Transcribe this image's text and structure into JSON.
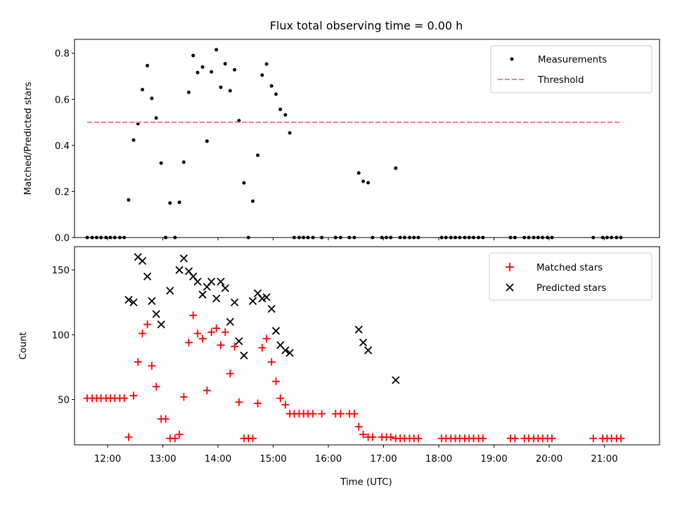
{
  "figure": {
    "title": "Flux total observing time = 0.00 h",
    "xlabel": "Time (UTC)",
    "xticks": [
      {
        "t": 12,
        "label": "12:00"
      },
      {
        "t": 13,
        "label": "13:00"
      },
      {
        "t": 14,
        "label": "14:00"
      },
      {
        "t": 15,
        "label": "15:00"
      },
      {
        "t": 16,
        "label": "16:00"
      },
      {
        "t": 17,
        "label": "17:00"
      },
      {
        "t": 18,
        "label": "18:00"
      },
      {
        "t": 19,
        "label": "19:00"
      },
      {
        "t": 20,
        "label": "20:00"
      },
      {
        "t": 21,
        "label": "21:00"
      }
    ],
    "xlim": [
      11.4,
      22.0
    ]
  },
  "chart_data": [
    {
      "type": "scatter",
      "ylabel": "Matched/Predicted stars",
      "ylim": [
        0,
        0.86
      ],
      "yticks": [
        {
          "v": 0.0,
          "label": "0.0"
        },
        {
          "v": 0.2,
          "label": "0.2"
        },
        {
          "v": 0.4,
          "label": "0.4"
        },
        {
          "v": 0.6,
          "label": "0.6"
        },
        {
          "v": 0.8,
          "label": "0.8"
        }
      ],
      "legend": {
        "position": "upper right",
        "entries": [
          "Measurements",
          "Threshold"
        ]
      },
      "series": [
        {
          "name": "Measurements",
          "marker": "dot",
          "color": "#000000",
          "points": [
            [
              11.63,
              0
            ],
            [
              11.72,
              0
            ],
            [
              11.8,
              0
            ],
            [
              11.88,
              0
            ],
            [
              11.97,
              0
            ],
            [
              12.05,
              0
            ],
            [
              12.13,
              0
            ],
            [
              12.22,
              0
            ],
            [
              12.3,
              0
            ],
            [
              12.38,
              0.163
            ],
            [
              12.47,
              0.423
            ],
            [
              12.55,
              0.494
            ],
            [
              12.63,
              0.642
            ],
            [
              12.72,
              0.746
            ],
            [
              12.8,
              0.604
            ],
            [
              12.88,
              0.519
            ],
            [
              12.97,
              0.323
            ],
            [
              13.05,
              0
            ],
            [
              13.13,
              0.15
            ],
            [
              13.22,
              0
            ],
            [
              13.3,
              0.153
            ],
            [
              13.38,
              0.327
            ],
            [
              13.47,
              0.63
            ],
            [
              13.55,
              0.79
            ],
            [
              13.63,
              0.716
            ],
            [
              13.72,
              0.74
            ],
            [
              13.8,
              0.418
            ],
            [
              13.88,
              0.719
            ],
            [
              13.97,
              0.815
            ],
            [
              14.05,
              0.652
            ],
            [
              14.13,
              0.754
            ],
            [
              14.22,
              0.637
            ],
            [
              14.3,
              0.728
            ],
            [
              14.38,
              0.507
            ],
            [
              14.47,
              0.237
            ],
            [
              14.55,
              0
            ],
            [
              14.63,
              0.158
            ],
            [
              14.72,
              0.357
            ],
            [
              14.8,
              0.705
            ],
            [
              14.88,
              0.753
            ],
            [
              14.97,
              0.658
            ],
            [
              15.05,
              0.622
            ],
            [
              15.13,
              0.556
            ],
            [
              15.22,
              0.532
            ],
            [
              15.3,
              0.454
            ],
            [
              15.38,
              0
            ],
            [
              15.47,
              0
            ],
            [
              15.55,
              0
            ],
            [
              15.63,
              0
            ],
            [
              15.72,
              0
            ],
            [
              15.88,
              0
            ],
            [
              16.13,
              0
            ],
            [
              16.22,
              0
            ],
            [
              16.38,
              0
            ],
            [
              16.47,
              0
            ],
            [
              16.55,
              0.28
            ],
            [
              16.63,
              0.244
            ],
            [
              16.72,
              0.238
            ],
            [
              16.8,
              0
            ],
            [
              16.97,
              0
            ],
            [
              17.05,
              0
            ],
            [
              17.13,
              0
            ],
            [
              17.22,
              0.301
            ],
            [
              17.3,
              0
            ],
            [
              17.38,
              0
            ],
            [
              17.47,
              0
            ],
            [
              17.55,
              0
            ],
            [
              17.63,
              0
            ],
            [
              18.05,
              0
            ],
            [
              18.13,
              0
            ],
            [
              18.22,
              0
            ],
            [
              18.3,
              0
            ],
            [
              18.38,
              0
            ],
            [
              18.47,
              0
            ],
            [
              18.55,
              0
            ],
            [
              18.63,
              0
            ],
            [
              18.72,
              0
            ],
            [
              18.8,
              0
            ],
            [
              19.3,
              0
            ],
            [
              19.38,
              0
            ],
            [
              19.55,
              0
            ],
            [
              19.63,
              0
            ],
            [
              19.72,
              0
            ],
            [
              19.8,
              0
            ],
            [
              19.88,
              0
            ],
            [
              19.97,
              0
            ],
            [
              20.05,
              0
            ],
            [
              20.8,
              0
            ],
            [
              20.97,
              0
            ],
            [
              21.05,
              0
            ],
            [
              21.13,
              0
            ],
            [
              21.22,
              0
            ],
            [
              21.3,
              0
            ]
          ]
        },
        {
          "name": "Threshold",
          "line": "dashed",
          "color": "#ff7f7f",
          "x": [
            11.63,
            21.3
          ],
          "y": [
            0.5,
            0.5
          ]
        }
      ]
    },
    {
      "type": "scatter",
      "ylabel": "Count",
      "ylim": [
        15,
        168
      ],
      "yticks": [
        {
          "v": 50,
          "label": "50"
        },
        {
          "v": 100,
          "label": "100"
        },
        {
          "v": 150,
          "label": "150"
        }
      ],
      "legend": {
        "position": "upper right",
        "entries": [
          "Matched stars",
          "Predicted stars"
        ]
      },
      "series": [
        {
          "name": "Matched stars",
          "marker": "plus",
          "color": "#ff0000",
          "points": [
            [
              11.63,
              51
            ],
            [
              11.72,
              51
            ],
            [
              11.8,
              51
            ],
            [
              11.88,
              51
            ],
            [
              11.97,
              51
            ],
            [
              12.05,
              51
            ],
            [
              12.13,
              51
            ],
            [
              12.22,
              51
            ],
            [
              12.3,
              51
            ],
            [
              12.38,
              21
            ],
            [
              12.47,
              53
            ],
            [
              12.55,
              79
            ],
            [
              12.63,
              101
            ],
            [
              12.72,
              108
            ],
            [
              12.8,
              76
            ],
            [
              12.88,
              60
            ],
            [
              12.97,
              35
            ],
            [
              13.05,
              35
            ],
            [
              13.13,
              20
            ],
            [
              13.22,
              20
            ],
            [
              13.3,
              23
            ],
            [
              13.38,
              52
            ],
            [
              13.47,
              94
            ],
            [
              13.55,
              115
            ],
            [
              13.63,
              101
            ],
            [
              13.72,
              97
            ],
            [
              13.8,
              57
            ],
            [
              13.88,
              102
            ],
            [
              13.97,
              105
            ],
            [
              14.05,
              92
            ],
            [
              14.13,
              102
            ],
            [
              14.22,
              70
            ],
            [
              14.3,
              91
            ],
            [
              14.38,
              48
            ],
            [
              14.47,
              20
            ],
            [
              14.55,
              20
            ],
            [
              14.63,
              20
            ],
            [
              14.72,
              47
            ],
            [
              14.8,
              90
            ],
            [
              14.88,
              97
            ],
            [
              14.97,
              79
            ],
            [
              15.05,
              64
            ],
            [
              15.13,
              51
            ],
            [
              15.22,
              46
            ],
            [
              15.3,
              39
            ],
            [
              15.38,
              39
            ],
            [
              15.47,
              39
            ],
            [
              15.55,
              39
            ],
            [
              15.63,
              39
            ],
            [
              15.72,
              39
            ],
            [
              15.88,
              39
            ],
            [
              16.13,
              39
            ],
            [
              16.22,
              39
            ],
            [
              16.38,
              39
            ],
            [
              16.47,
              39
            ],
            [
              16.55,
              29
            ],
            [
              16.63,
              23
            ],
            [
              16.72,
              21
            ],
            [
              16.8,
              21
            ],
            [
              16.97,
              21
            ],
            [
              17.05,
              21
            ],
            [
              17.13,
              21
            ],
            [
              17.22,
              20
            ],
            [
              17.3,
              20
            ],
            [
              17.38,
              20
            ],
            [
              17.47,
              20
            ],
            [
              17.55,
              20
            ],
            [
              17.63,
              20
            ],
            [
              18.05,
              20
            ],
            [
              18.13,
              20
            ],
            [
              18.22,
              20
            ],
            [
              18.3,
              20
            ],
            [
              18.38,
              20
            ],
            [
              18.47,
              20
            ],
            [
              18.55,
              20
            ],
            [
              18.63,
              20
            ],
            [
              18.72,
              20
            ],
            [
              18.8,
              20
            ],
            [
              19.3,
              20
            ],
            [
              19.38,
              20
            ],
            [
              19.55,
              20
            ],
            [
              19.63,
              20
            ],
            [
              19.72,
              20
            ],
            [
              19.8,
              20
            ],
            [
              19.88,
              20
            ],
            [
              19.97,
              20
            ],
            [
              20.05,
              20
            ],
            [
              20.8,
              20
            ],
            [
              20.97,
              20
            ],
            [
              21.05,
              20
            ],
            [
              21.13,
              20
            ],
            [
              21.22,
              20
            ],
            [
              21.3,
              20
            ]
          ]
        },
        {
          "name": "Predicted stars",
          "marker": "x",
          "color": "#000000",
          "points": [
            [
              12.38,
              127
            ],
            [
              12.47,
              125
            ],
            [
              12.55,
              160
            ],
            [
              12.63,
              157
            ],
            [
              12.72,
              145
            ],
            [
              12.8,
              126
            ],
            [
              12.88,
              116
            ],
            [
              12.97,
              108
            ],
            [
              13.13,
              134
            ],
            [
              13.3,
              150
            ],
            [
              13.38,
              159
            ],
            [
              13.47,
              149
            ],
            [
              13.55,
              145
            ],
            [
              13.63,
              141
            ],
            [
              13.72,
              131
            ],
            [
              13.8,
              137
            ],
            [
              13.88,
              141
            ],
            [
              13.97,
              128
            ],
            [
              14.05,
              141
            ],
            [
              14.13,
              136
            ],
            [
              14.22,
              110
            ],
            [
              14.3,
              125
            ],
            [
              14.38,
              95
            ],
            [
              14.47,
              84
            ],
            [
              14.63,
              126
            ],
            [
              14.72,
              132
            ],
            [
              14.8,
              128
            ],
            [
              14.88,
              129
            ],
            [
              14.97,
              120
            ],
            [
              15.05,
              103
            ],
            [
              15.13,
              92
            ],
            [
              15.22,
              88
            ],
            [
              15.3,
              86
            ],
            [
              16.55,
              104
            ],
            [
              16.63,
              94
            ],
            [
              16.72,
              88
            ],
            [
              17.22,
              65
            ]
          ]
        }
      ]
    }
  ]
}
